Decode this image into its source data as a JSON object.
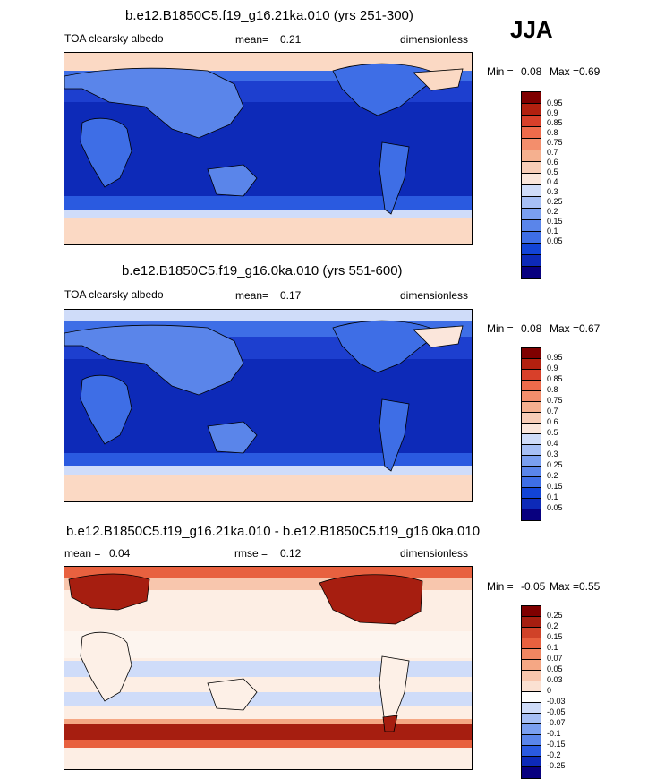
{
  "season": "JJA",
  "colors": {
    "red_scale": [
      "#08007f",
      "#0d2ab8",
      "#1244d6",
      "#2a5ae0",
      "#3e6ee6",
      "#5a85ea",
      "#7a9ff0",
      "#a6bff5",
      "#cfdcf9",
      "#fbe6db",
      "#f8cdb7",
      "#f5b08f",
      "#f38e6c",
      "#ee6b4b",
      "#e04a2d",
      "#c8361e",
      "#a01a0e",
      "#7f0000"
    ],
    "diff_scale": [
      "#08007f",
      "#0d2ab8",
      "#1244d6",
      "#2a5ae0",
      "#3e6ee6",
      "#5a85ea",
      "#7a9ff0",
      "#a6bff5",
      "#cfdcf9",
      "#fdf0e7",
      "#fbe1d2",
      "#f8c6ad",
      "#f5a784",
      "#f08661",
      "#e8613f",
      "#d04228",
      "#a61e10",
      "#7f0000"
    ]
  },
  "chart_data": [
    {
      "type": "heatmap",
      "title": "b.e12.B1850C5.f19_g16.21ka.010 (yrs 251-300)",
      "field": "TOA clearsky albedo",
      "mean_label": "mean=",
      "mean": "0.21",
      "units": "dimensionless",
      "min_label": "Min =",
      "min": "0.08",
      "max_label": "Max =",
      "max": "0.69",
      "levels": [
        "0.95",
        "0.9",
        "0.85",
        "0.8",
        "0.75",
        "0.7",
        "0.6",
        "0.5",
        "0.4",
        "0.3",
        "0.25",
        "0.2",
        "0.15",
        "0.1",
        "0.05"
      ]
    },
    {
      "type": "heatmap",
      "title": "b.e12.B1850C5.f19_g16.0ka.010 (yrs 551-600)",
      "field": "TOA clearsky albedo",
      "mean_label": "mean=",
      "mean": "0.17",
      "units": "dimensionless",
      "min_label": "Min =",
      "min": "0.08",
      "max_label": "Max =",
      "max": "0.67",
      "levels": [
        "0.95",
        "0.9",
        "0.85",
        "0.8",
        "0.75",
        "0.7",
        "0.6",
        "0.5",
        "0.4",
        "0.3",
        "0.25",
        "0.2",
        "0.15",
        "0.1",
        "0.05"
      ]
    },
    {
      "type": "heatmap",
      "title": "b.e12.B1850C5.f19_g16.21ka.010 - b.e12.B1850C5.f19_g16.0ka.010",
      "mean_label": "mean =",
      "mean": "0.04",
      "rmse_label": "rmse =",
      "rmse": "0.12",
      "units": "dimensionless",
      "min_label": "Min =",
      "min": "-0.05",
      "max_label": "Max =",
      "max": "0.55",
      "levels": [
        "0.25",
        "0.2",
        "0.15",
        "0.1",
        "0.07",
        "0.05",
        "0.03",
        "0",
        "-0.03",
        "-0.05",
        "-0.07",
        "-0.1",
        "-0.15",
        "-0.2",
        "-0.25"
      ]
    }
  ]
}
